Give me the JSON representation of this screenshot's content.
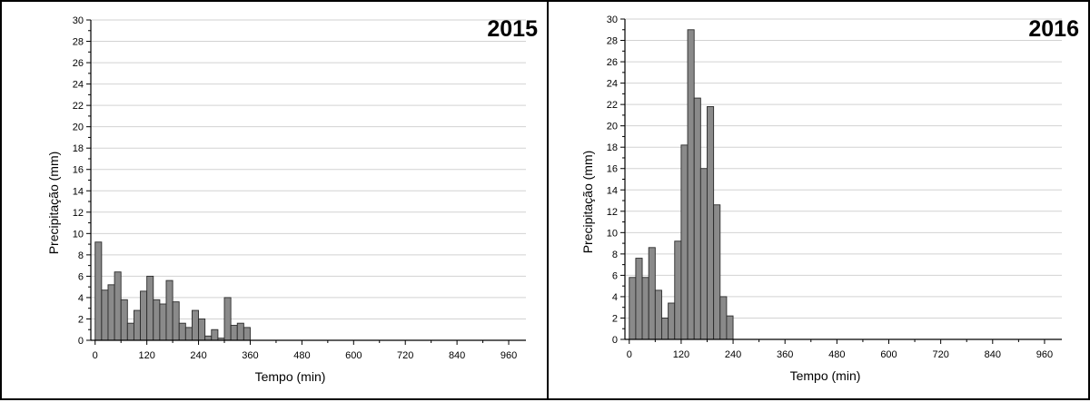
{
  "chart_data": [
    {
      "type": "bar",
      "title": "2015",
      "xlabel": "Tempo (min)",
      "ylabel": "Precipitação (mm)",
      "xlim": [
        -10,
        1000
      ],
      "ylim": [
        0,
        30
      ],
      "bin_width": 15,
      "x_ticks": [
        0,
        120,
        240,
        360,
        480,
        600,
        720,
        840,
        960
      ],
      "y_ticks": [
        0,
        2,
        4,
        6,
        8,
        10,
        12,
        14,
        16,
        18,
        20,
        22,
        24,
        26,
        28,
        30
      ],
      "grid": true,
      "x": [
        0,
        15,
        30,
        45,
        60,
        75,
        90,
        105,
        120,
        135,
        150,
        165,
        180,
        195,
        210,
        225,
        240,
        255,
        270,
        285,
        300,
        315,
        330,
        345
      ],
      "values": [
        9.2,
        4.7,
        5.2,
        6.4,
        3.8,
        1.6,
        2.8,
        4.6,
        6.0,
        3.8,
        3.4,
        5.6,
        3.6,
        1.6,
        1.2,
        2.8,
        2.0,
        0.4,
        1.0,
        0.2,
        4.0,
        1.4,
        1.6,
        1.2
      ]
    },
    {
      "type": "bar",
      "title": "2016",
      "xlabel": "Tempo (min)",
      "ylabel": "Precipitação (mm)",
      "xlim": [
        -10,
        1000
      ],
      "ylim": [
        0,
        30
      ],
      "bin_width": 15,
      "x_ticks": [
        0,
        120,
        240,
        360,
        480,
        600,
        720,
        840,
        960
      ],
      "y_ticks": [
        0,
        2,
        4,
        6,
        8,
        10,
        12,
        14,
        16,
        18,
        20,
        22,
        24,
        26,
        28,
        30
      ],
      "grid": true,
      "x": [
        0,
        15,
        30,
        45,
        60,
        75,
        90,
        105,
        120,
        135,
        150,
        165,
        180,
        195,
        210,
        225
      ],
      "values": [
        5.8,
        7.6,
        5.8,
        8.6,
        4.6,
        2.0,
        3.4,
        9.2,
        18.2,
        29.0,
        22.6,
        16.0,
        21.8,
        12.6,
        4.0,
        2.2
      ]
    }
  ]
}
